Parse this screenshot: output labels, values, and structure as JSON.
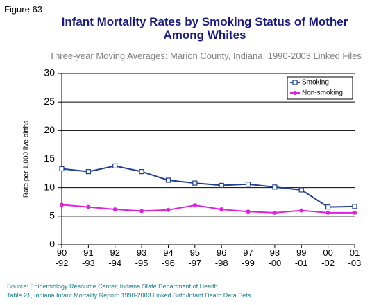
{
  "chart_data": {
    "type": "line",
    "figure_label": "Figure 63",
    "title": "Infant Mortality Rates by Smoking Status of Mother Among Whites",
    "subtitle": "Three-year Moving Averages: Marion County, Indiana, 1990-2003 Linked Files",
    "y_label": "Rate per 1,000 live births",
    "categories": [
      "90\n-92",
      "91\n-93",
      "92\n-94",
      "93\n-95",
      "94\n-96",
      "95\n-97",
      "96\n-98",
      "97\n-99",
      "98\n-00",
      "99\n-01",
      "00\n-02",
      "01\n-03"
    ],
    "series": [
      {
        "name": "Smoking",
        "color": "#1f3f8f",
        "marker": "square",
        "values": [
          13.3,
          12.8,
          13.8,
          12.8,
          11.3,
          10.8,
          10.4,
          10.6,
          10.1,
          9.6,
          6.6,
          6.7
        ]
      },
      {
        "name": "Non-smoking",
        "color": "#e020e0",
        "marker": "circle",
        "values": [
          7.0,
          6.6,
          6.2,
          5.9,
          6.1,
          6.9,
          6.2,
          5.8,
          5.6,
          6.0,
          5.6,
          5.6
        ]
      }
    ],
    "ylim": [
      0,
      30
    ],
    "yticks": [
      0,
      5,
      10,
      15,
      20,
      25,
      30
    ],
    "grid": true,
    "legend": "top-right",
    "source": [
      "Source: Epidemiology Resource Center, Indiana State Department of Health",
      "Table 21, Indiana Infant Mortality Report: 1990-2003 Linked Birth/Infant Death Data Sets"
    ]
  }
}
